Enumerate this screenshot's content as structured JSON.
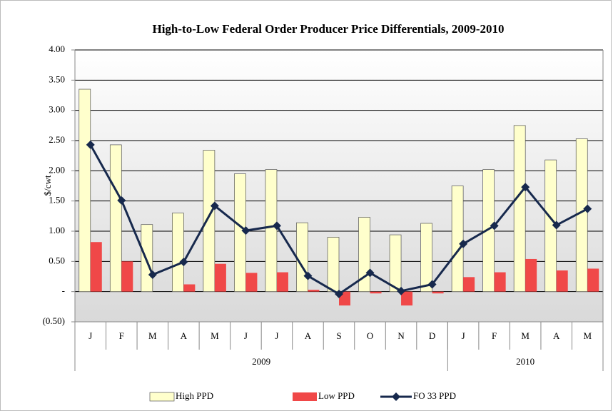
{
  "chart_data": {
    "type": "bar-line",
    "title": "High-to-Low Federal Order Producer Price Differentials, 2009-2010",
    "y_label": "$/cwt",
    "category_groups": [
      {
        "label": "2009",
        "categories": [
          "J",
          "F",
          "M",
          "A",
          "M",
          "J",
          "J",
          "A",
          "S",
          "O",
          "N",
          "D"
        ]
      },
      {
        "label": "2010",
        "categories": [
          "J",
          "F",
          "M",
          "A",
          "M"
        ]
      }
    ],
    "series": [
      {
        "name": "High PPD",
        "kind": "bar",
        "color": "#ffffcc",
        "values": [
          3.35,
          2.43,
          1.11,
          1.3,
          2.34,
          1.95,
          2.02,
          1.14,
          0.9,
          1.23,
          0.94,
          1.13,
          1.75,
          2.02,
          2.75,
          2.18,
          2.53
        ]
      },
      {
        "name": "Low PPD",
        "kind": "bar",
        "color": "#f04848",
        "values": [
          0.82,
          0.5,
          0.0,
          0.12,
          0.46,
          0.31,
          0.32,
          0.03,
          -0.23,
          -0.03,
          -0.23,
          -0.03,
          0.24,
          0.32,
          0.54,
          0.35,
          0.38
        ]
      },
      {
        "name": "FO 33 PPD",
        "kind": "line",
        "color": "#17294d",
        "values": [
          2.43,
          1.51,
          0.28,
          0.49,
          1.42,
          1.01,
          1.09,
          0.26,
          -0.04,
          0.31,
          0.01,
          0.12,
          0.79,
          1.09,
          1.73,
          1.1,
          1.37
        ]
      }
    ],
    "ylim": [
      -0.5,
      4.0
    ],
    "yticks": [
      {
        "value": -0.5,
        "label": "(0.50)"
      },
      {
        "value": 0,
        "label": "-"
      },
      {
        "value": 0.5,
        "label": "0.50"
      },
      {
        "value": 1.0,
        "label": "1.00"
      },
      {
        "value": 1.5,
        "label": "1.50"
      },
      {
        "value": 2.0,
        "label": "2.00"
      },
      {
        "value": 2.5,
        "label": "2.50"
      },
      {
        "value": 3.0,
        "label": "3.00"
      },
      {
        "value": 3.5,
        "label": "3.50"
      },
      {
        "value": 4.0,
        "label": "4.00"
      }
    ],
    "grid": true,
    "legend": "bottom"
  }
}
